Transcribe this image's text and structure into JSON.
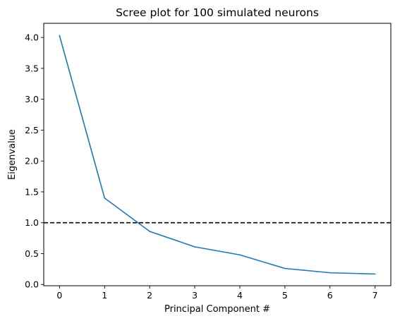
{
  "chart_data": {
    "type": "line",
    "title": "Scree plot for 100 simulated neurons",
    "xlabel": "Principal Component #",
    "ylabel": "Eigenvalue",
    "x": [
      0,
      1,
      2,
      3,
      4,
      5,
      6,
      7
    ],
    "series": [
      {
        "values": [
          4.03,
          1.4,
          0.86,
          0.61,
          0.48,
          0.26,
          0.19,
          0.17
        ],
        "color": "#1f77b4"
      }
    ],
    "reference_line": {
      "y": 1.0,
      "style": "dashed",
      "color": "#000000"
    },
    "xticks": [
      "0",
      "1",
      "2",
      "3",
      "4",
      "5",
      "6",
      "7"
    ],
    "yticks": [
      "0.0",
      "0.5",
      "1.0",
      "1.5",
      "2.0",
      "2.5",
      "3.0",
      "3.5",
      "4.0"
    ],
    "xlim": [
      -0.35,
      7.35
    ],
    "ylim": [
      -0.02,
      4.23
    ],
    "grid": false,
    "legend": false
  }
}
